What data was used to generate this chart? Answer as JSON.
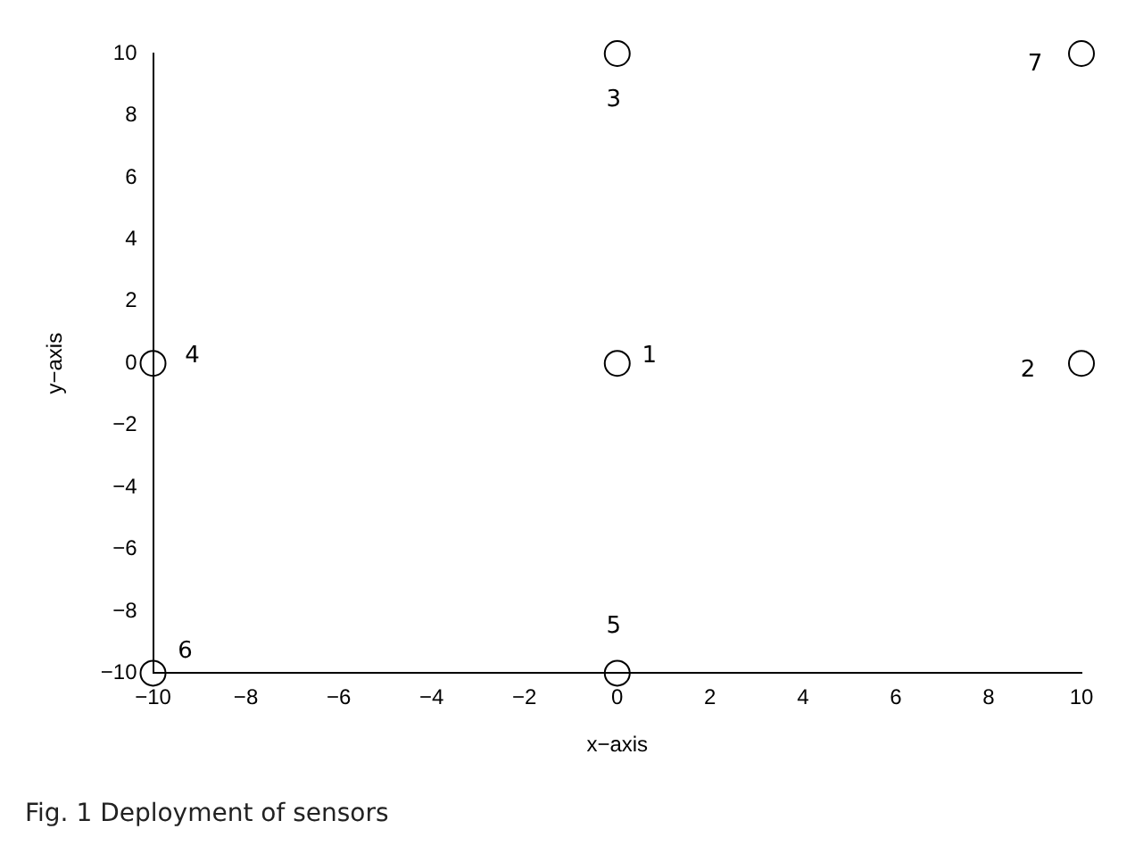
{
  "chart_data": {
    "type": "scatter",
    "xlabel": "x−axis",
    "ylabel": "y−axis",
    "x": [
      0,
      10,
      0,
      -10,
      0,
      -10,
      10
    ],
    "values": [
      0,
      0,
      10,
      0,
      -10,
      -10,
      10
    ],
    "color": "#000000",
    "marker": "circle",
    "grid": false,
    "xlim": [
      -10,
      10
    ],
    "xticks": [
      -10,
      -8,
      -6,
      -4,
      -2,
      0,
      2,
      4,
      6,
      8,
      10
    ],
    "ylim": [
      -10,
      10
    ],
    "yticks": [
      -10,
      -8,
      -6,
      -4,
      -2,
      0,
      2,
      4,
      6,
      8,
      10
    ],
    "annotations": [
      {
        "text": "1",
        "x": 0,
        "y": 0
      },
      {
        "text": "2",
        "x": 10,
        "y": 0
      },
      {
        "text": "3",
        "x": 0,
        "y": 10
      },
      {
        "text": "4",
        "x": -10,
        "y": 0
      },
      {
        "text": "5",
        "x": 0,
        "y": -10
      },
      {
        "text": "6",
        "x": -10,
        "y": -10
      },
      {
        "text": "7",
        "x": 10,
        "y": 10
      },
      "Fig. 1 Deployment of sensors"
    ]
  }
}
